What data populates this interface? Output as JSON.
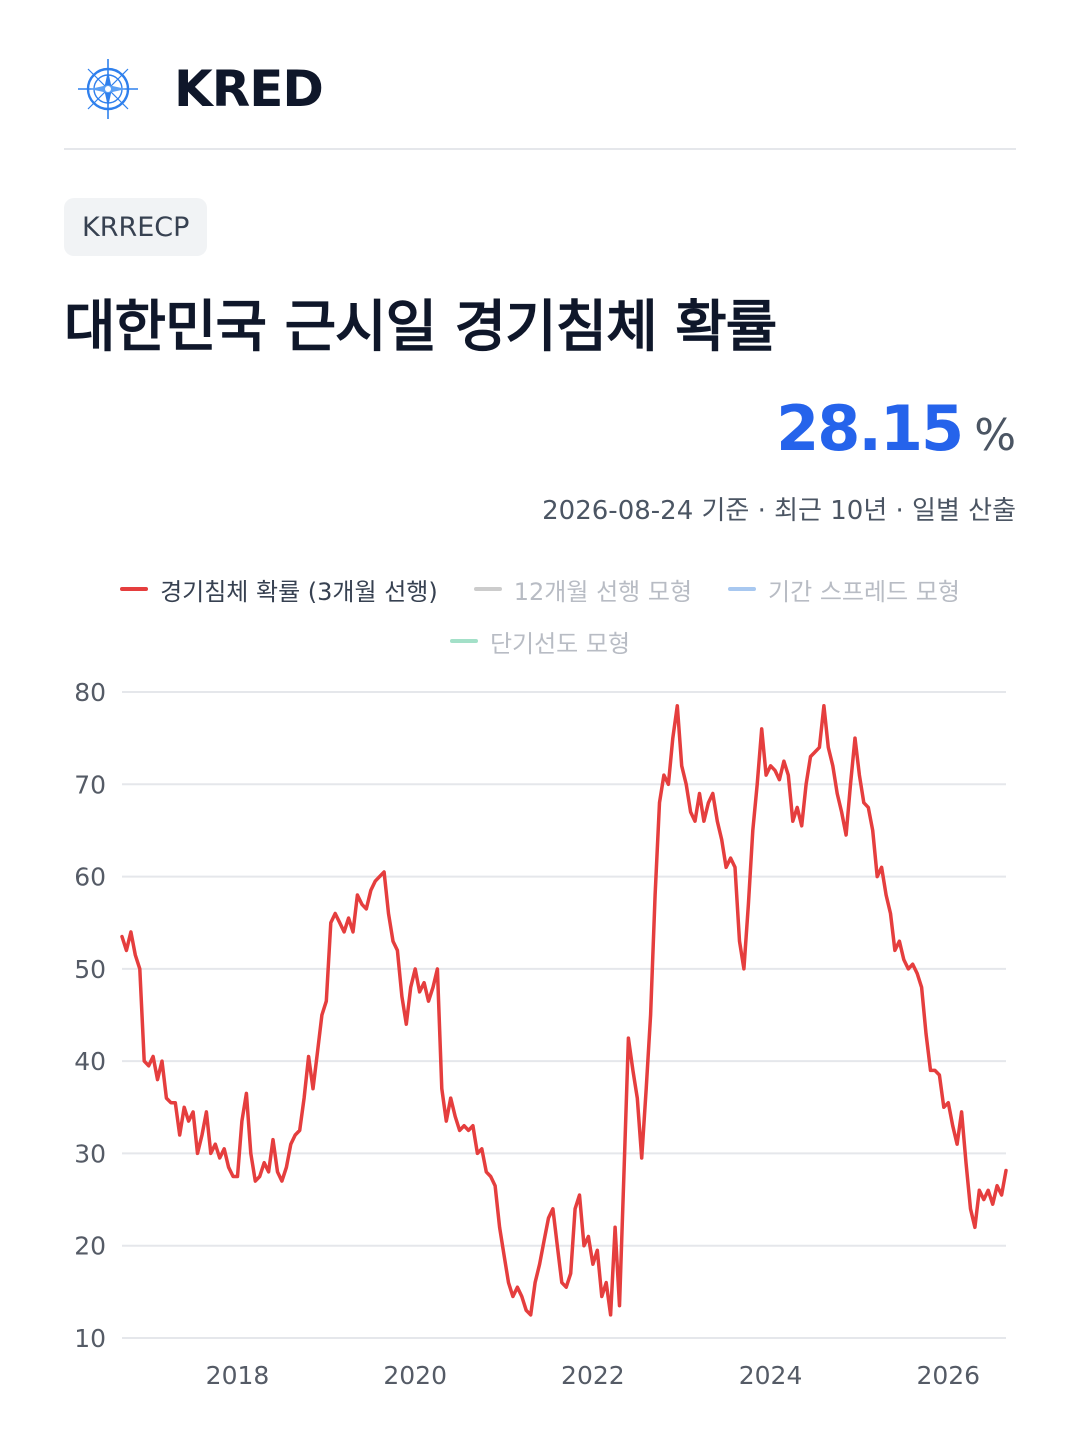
{
  "header": {
    "brand": "KRED",
    "logo_icon": "compass-icon",
    "logo_color": "#2f80ed"
  },
  "badge": "KRRECP",
  "title": "대한민국 근시일 경기침체 확률",
  "current": {
    "value": "28.15",
    "unit": "%"
  },
  "subtitle": "2026-08-24 기준 · 최근 10년 · 일별 산출",
  "legend": [
    {
      "label": "경기침체 확률 (3개월 선행)",
      "color": "#e53e3e",
      "active": true
    },
    {
      "label": "12개월 선행 모형",
      "color": "#cccccc",
      "active": false
    },
    {
      "label": "기간 스프레드 모형",
      "color": "#a8c8f0",
      "active": false
    },
    {
      "label": "단기선도 모형",
      "color": "#a3e0c8",
      "active": false
    }
  ],
  "chart_data": {
    "type": "line",
    "ylim": [
      10,
      80
    ],
    "yticks": [
      10,
      20,
      30,
      40,
      50,
      60,
      70,
      80
    ],
    "xlim": [
      2016.7,
      2026.65
    ],
    "xticks": [
      2018,
      2020,
      2022,
      2024,
      2026
    ],
    "grid": true,
    "series": [
      {
        "name": "경기침체 확률 (3개월 선행)",
        "color": "#e53e3e",
        "x": [
          2016.7,
          2016.75,
          2016.8,
          2016.85,
          2016.9,
          2016.95,
          2017.0,
          2017.05,
          2017.1,
          2017.15,
          2017.2,
          2017.25,
          2017.3,
          2017.35,
          2017.4,
          2017.45,
          2017.5,
          2017.55,
          2017.6,
          2017.65,
          2017.7,
          2017.75,
          2017.8,
          2017.85,
          2017.9,
          2017.95,
          2018.0,
          2018.05,
          2018.1,
          2018.15,
          2018.2,
          2018.25,
          2018.3,
          2018.35,
          2018.4,
          2018.45,
          2018.5,
          2018.55,
          2018.6,
          2018.65,
          2018.7,
          2018.75,
          2018.8,
          2018.85,
          2018.9,
          2018.95,
          2019.0,
          2019.05,
          2019.1,
          2019.15,
          2019.2,
          2019.25,
          2019.3,
          2019.35,
          2019.4,
          2019.45,
          2019.5,
          2019.55,
          2019.6,
          2019.65,
          2019.7,
          2019.75,
          2019.8,
          2019.85,
          2019.9,
          2019.95,
          2020.0,
          2020.05,
          2020.1,
          2020.15,
          2020.2,
          2020.25,
          2020.3,
          2020.35,
          2020.4,
          2020.45,
          2020.5,
          2020.55,
          2020.6,
          2020.65,
          2020.7,
          2020.75,
          2020.8,
          2020.85,
          2020.9,
          2020.95,
          2021.0,
          2021.05,
          2021.1,
          2021.15,
          2021.2,
          2021.25,
          2021.3,
          2021.35,
          2021.4,
          2021.45,
          2021.5,
          2021.55,
          2021.6,
          2021.65,
          2021.7,
          2021.75,
          2021.8,
          2021.85,
          2021.9,
          2021.95,
          2022.0,
          2022.05,
          2022.1,
          2022.15,
          2022.2,
          2022.25,
          2022.3,
          2022.35,
          2022.4,
          2022.45,
          2022.5,
          2022.55,
          2022.6,
          2022.65,
          2022.7,
          2022.75,
          2022.8,
          2022.85,
          2022.9,
          2022.95,
          2023.0,
          2023.05,
          2023.1,
          2023.15,
          2023.2,
          2023.25,
          2023.3,
          2023.35,
          2023.4,
          2023.45,
          2023.5,
          2023.55,
          2023.6,
          2023.65,
          2023.7,
          2023.75,
          2023.8,
          2023.85,
          2023.9,
          2023.95,
          2024.0,
          2024.05,
          2024.1,
          2024.15,
          2024.2,
          2024.25,
          2024.3,
          2024.35,
          2024.4,
          2024.45,
          2024.5,
          2024.55,
          2024.6,
          2024.65,
          2024.7,
          2024.75,
          2024.8,
          2024.85,
          2024.9,
          2024.95,
          2025.0,
          2025.05,
          2025.1,
          2025.15,
          2025.2,
          2025.25,
          2025.3,
          2025.35,
          2025.4,
          2025.45,
          2025.5,
          2025.55,
          2025.6,
          2025.65,
          2025.7,
          2025.75,
          2025.8,
          2025.85,
          2025.9,
          2025.95,
          2026.0,
          2026.05,
          2026.1,
          2026.15,
          2026.2,
          2026.25,
          2026.3,
          2026.35,
          2026.4,
          2026.45,
          2026.5,
          2026.55,
          2026.6,
          2026.65
        ],
        "y": [
          53.5,
          52.0,
          54.0,
          51.5,
          50.0,
          40.0,
          39.5,
          40.5,
          38.0,
          40.0,
          36.0,
          35.5,
          35.5,
          32.0,
          35.0,
          33.5,
          34.5,
          30.0,
          32.0,
          34.5,
          30.0,
          31.0,
          29.5,
          30.5,
          28.5,
          27.5,
          27.5,
          33.5,
          36.5,
          30.0,
          27.0,
          27.5,
          29.0,
          28.0,
          31.5,
          28.0,
          27.0,
          28.5,
          31.0,
          32.0,
          32.5,
          36.0,
          40.5,
          37.0,
          41.0,
          45.0,
          46.5,
          55.0,
          56.0,
          55.0,
          54.0,
          55.5,
          54.0,
          58.0,
          57.0,
          56.5,
          58.5,
          59.5,
          60.0,
          60.5,
          56.0,
          53.0,
          52.0,
          47.0,
          44.0,
          48.0,
          50.0,
          47.5,
          48.5,
          46.5,
          48.0,
          50.0,
          37.0,
          33.5,
          36.0,
          34.0,
          32.5,
          33.0,
          32.5,
          33.0,
          30.0,
          30.5,
          28.0,
          27.5,
          26.5,
          22.0,
          19.0,
          16.0,
          14.5,
          15.5,
          14.5,
          13.0,
          12.5,
          16.0,
          18.0,
          20.5,
          23.0,
          24.0,
          20.0,
          16.0,
          15.5,
          17.0,
          24.0,
          25.5,
          20.0,
          21.0,
          18.0,
          19.5,
          14.5,
          16.0,
          12.5,
          22.0,
          13.5,
          28.0,
          42.5,
          39.0,
          36.0,
          29.5,
          37.0,
          45.0,
          58.0,
          68.0,
          71.0,
          70.0,
          75.0,
          78.5,
          72.0,
          70.0,
          67.0,
          66.0,
          69.0,
          66.0,
          68.0,
          69.0,
          66.0,
          64.0,
          61.0,
          62.0,
          61.0,
          53.0,
          50.0,
          57.0,
          65.0,
          70.0,
          76.0,
          71.0,
          72.0,
          71.5,
          70.5,
          72.5,
          71.0,
          66.0,
          67.5,
          65.5,
          70.0,
          73.0,
          73.5,
          74.0,
          78.5,
          74.0,
          72.0,
          69.0,
          67.0,
          64.5,
          70.0,
          75.0,
          71.0,
          68.0,
          67.5,
          65.0,
          60.0,
          61.0,
          58.0,
          56.0,
          52.0,
          53.0,
          51.0,
          50.0,
          50.5,
          49.5,
          48.0,
          43.0,
          39.0,
          39.0,
          38.5,
          35.0,
          35.5,
          33.0,
          31.0,
          34.5,
          29.0,
          24.0,
          22.0,
          26.0,
          25.0,
          26.0,
          24.5,
          26.5,
          25.5,
          28.15
        ]
      }
    ]
  }
}
